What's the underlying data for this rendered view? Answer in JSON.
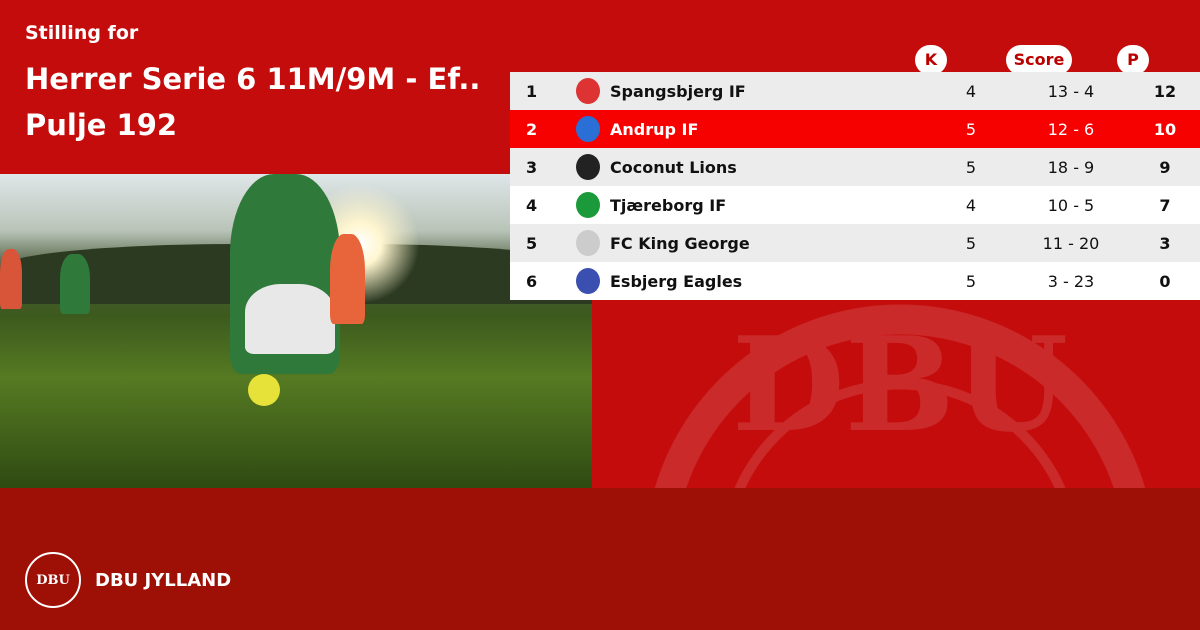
{
  "header": {
    "subtitle": "Stilling for",
    "title_line1": "Herrer Serie 6 11M/9M - Ef..",
    "title_line2": "Pulje 192"
  },
  "columns": {
    "k": "K",
    "score": "Score",
    "p": "P"
  },
  "rows": [
    {
      "pos": "1",
      "team": "Spangsbjerg IF",
      "k": "4",
      "score": "13 - 4",
      "p": "12",
      "logo": "#d33"
    },
    {
      "pos": "2",
      "team": "Andrup IF",
      "k": "5",
      "score": "12 - 6",
      "p": "10",
      "logo": "#2a6fd6",
      "highlight": true
    },
    {
      "pos": "3",
      "team": "Coconut Lions",
      "k": "5",
      "score": "18 - 9",
      "p": "9",
      "logo": "#222"
    },
    {
      "pos": "4",
      "team": "Tjæreborg IF",
      "k": "4",
      "score": "10 - 5",
      "p": "7",
      "logo": "#1a9a3a"
    },
    {
      "pos": "5",
      "team": "FC King George",
      "k": "5",
      "score": "11 - 20",
      "p": "3",
      "logo": "#ccc"
    },
    {
      "pos": "6",
      "team": "Esbjerg Eagles",
      "k": "5",
      "score": "3 - 23",
      "p": "0",
      "logo": "#3b4fb0"
    }
  ],
  "brand": {
    "seal_text": "DBU",
    "name": "DBU JYLLAND"
  },
  "colors": {
    "primary": "#c40c0c",
    "highlight": "#f60000",
    "footer": "#9e0f05"
  }
}
